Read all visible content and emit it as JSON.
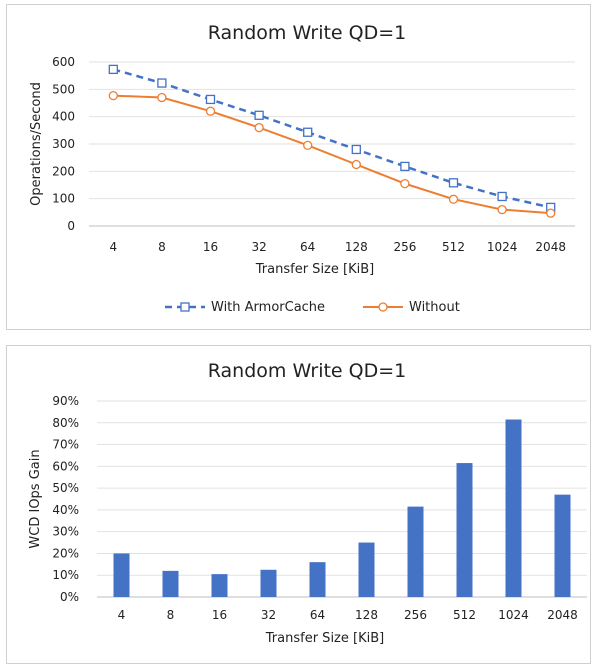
{
  "chart_data": [
    {
      "type": "line",
      "title": "Random Write  QD=1",
      "xlabel": "Transfer Size  [KiB]",
      "ylabel": "Operations/Second",
      "categories": [
        "4",
        "8",
        "16",
        "32",
        "64",
        "128",
        "256",
        "512",
        "1024",
        "2048"
      ],
      "ylim": [
        0,
        600
      ],
      "yticks": [
        "0",
        "100",
        "200",
        "300",
        "400",
        "500",
        "600"
      ],
      "grid": true,
      "legend_position": "bottom",
      "series": [
        {
          "name": "With ArmorCache",
          "color": "#4472c4",
          "marker": "square",
          "line_style": "dashed",
          "values": [
            573,
            523,
            463,
            405,
            343,
            280,
            218,
            158,
            108,
            68
          ]
        },
        {
          "name": "Without",
          "color": "#ed7d31",
          "marker": "circle",
          "line_style": "solid",
          "values": [
            477,
            470,
            420,
            360,
            295,
            225,
            155,
            98,
            60,
            47
          ]
        }
      ]
    },
    {
      "type": "bar",
      "title": "Random Write  QD=1",
      "xlabel": "Transfer Size  [KiB]",
      "ylabel": "WCD IOps Gain",
      "categories": [
        "4",
        "8",
        "16",
        "32",
        "64",
        "128",
        "256",
        "512",
        "1024",
        "2048"
      ],
      "ylim": [
        0,
        0.9
      ],
      "yticks": [
        "0%",
        "10%",
        "20%",
        "30%",
        "40%",
        "50%",
        "60%",
        "70%",
        "80%",
        "90%"
      ],
      "grid": true,
      "series": [
        {
          "color": "#4472c4",
          "values": [
            0.2,
            0.12,
            0.105,
            0.125,
            0.16,
            0.25,
            0.415,
            0.615,
            0.815,
            0.47
          ]
        }
      ]
    }
  ]
}
